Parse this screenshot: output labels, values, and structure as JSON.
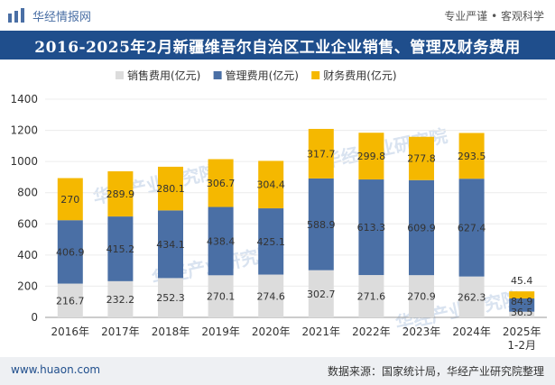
{
  "header": {
    "brand": "华经情报网",
    "slogan": "专业严谨 • 客观科学"
  },
  "footer": {
    "website": "www.huaon.com",
    "source": "数据来源：国家统计局，华经产业研究院整理"
  },
  "colors": {
    "title_bg": "#1f4e8c",
    "sales": "#dcdcdc",
    "management": "#4a6fa5",
    "finance": "#f5b800"
  },
  "chart_data": {
    "type": "bar",
    "stacked": true,
    "title": "2016-2025年2月新疆维吾尔自治区工业企业销售、管理及财务费用",
    "categories": [
      "2016年",
      "2017年",
      "2018年",
      "2019年",
      "2020年",
      "2021年",
      "2022年",
      "2023年",
      "2024年",
      "2025年\n1-2月"
    ],
    "series": [
      {
        "name": "销售费用(亿元)",
        "values": [
          216.7,
          232.2,
          252.3,
          270.1,
          274.6,
          302.7,
          271.6,
          270.9,
          262.3,
          36.5
        ]
      },
      {
        "name": "管理费用(亿元)",
        "values": [
          406.9,
          415.2,
          434.1,
          438.4,
          425.1,
          588.9,
          613.3,
          609.9,
          627.4,
          84.9
        ]
      },
      {
        "name": "财务费用(亿元)",
        "values": [
          270,
          289.9,
          280.1,
          306.7,
          304.4,
          317.7,
          299.8,
          277.8,
          293.5,
          45.4
        ]
      }
    ],
    "label_texts": [
      [
        "216.7",
        "232.2",
        "252.3",
        "270.1",
        "274.6",
        "302.7",
        "271.6",
        "270.9",
        "262.3",
        "36.5"
      ],
      [
        "406.9",
        "415.2",
        "434.1",
        "438.4",
        "425.1",
        "588.9",
        "613.3",
        "609.9",
        "627.4",
        "84.9"
      ],
      [
        "270",
        "289.9",
        "280.1",
        "306.7",
        "304.4",
        "317.7",
        "299.8",
        "277.8",
        "293.5",
        "45.4"
      ]
    ],
    "ylim": [
      0,
      1400
    ],
    "yticks": [
      0,
      200,
      400,
      600,
      800,
      1000,
      1200,
      1400
    ],
    "ytick_labels": [
      "0",
      "200",
      "400",
      "600",
      "800",
      "1000",
      "1200",
      "1400"
    ],
    "legend_position": "top-center",
    "watermark": "华经产业研究院"
  }
}
